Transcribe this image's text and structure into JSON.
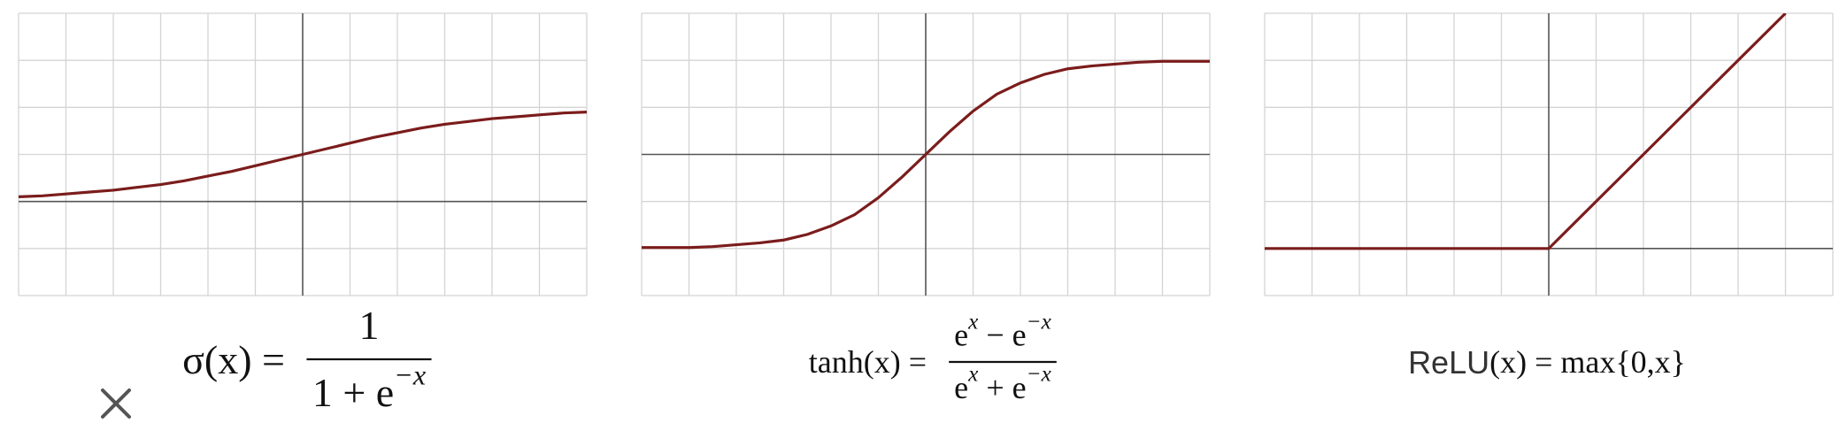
{
  "chart_data": [
    {
      "type": "line",
      "xlim": [
        -3,
        3
      ],
      "ylim": [
        -1,
        2
      ],
      "xticks": [
        -3,
        -2.5,
        -2,
        -1.5,
        -1,
        -0.5,
        0,
        0.5,
        1,
        1.5,
        2,
        2.5,
        3
      ],
      "yticks": [
        -1,
        -0.5,
        0,
        0.5,
        1,
        1.5,
        2
      ],
      "grid": true,
      "x": [
        -3,
        -2.75,
        -2.5,
        -2.25,
        -2,
        -1.75,
        -1.5,
        -1.25,
        -1,
        -0.75,
        -0.5,
        -0.25,
        0,
        0.25,
        0.5,
        0.75,
        1,
        1.25,
        1.5,
        1.75,
        2,
        2.25,
        2.5,
        2.75,
        3
      ],
      "series": [
        {
          "color": "#7b1c1c",
          "values": [
            0.05,
            0.06,
            0.08,
            0.1,
            0.12,
            0.15,
            0.18,
            0.22,
            0.27,
            0.32,
            0.38,
            0.44,
            0.5,
            0.56,
            0.62,
            0.68,
            0.73,
            0.78,
            0.82,
            0.85,
            0.88,
            0.9,
            0.92,
            0.94,
            0.95
          ]
        }
      ],
      "formula": {
        "lhs": [
          {
            "t": "σ(x) ="
          }
        ],
        "numerator": [
          {
            "t": "1"
          }
        ],
        "denominator": [
          {
            "t": "1 + e"
          },
          {
            "sup": "−x"
          }
        ]
      }
    },
    {
      "type": "line",
      "xlim": [
        -3,
        3
      ],
      "ylim": [
        -1.5,
        1.5
      ],
      "xticks": [
        -3,
        -2.5,
        -2,
        -1.5,
        -1,
        -0.5,
        0,
        0.5,
        1,
        1.5,
        2,
        2.5,
        3
      ],
      "yticks": [
        -1.5,
        -1,
        -0.5,
        0,
        0.5,
        1,
        1.5
      ],
      "grid": true,
      "x": [
        -3,
        -2.75,
        -2.5,
        -2.25,
        -2,
        -1.75,
        -1.5,
        -1.25,
        -1,
        -0.75,
        -0.5,
        -0.25,
        0,
        0.25,
        0.5,
        0.75,
        1,
        1.25,
        1.5,
        1.75,
        2,
        2.25,
        2.5,
        2.75,
        3
      ],
      "series": [
        {
          "color": "#7b1c1c",
          "values": [
            -0.99,
            -0.99,
            -0.99,
            -0.98,
            -0.96,
            -0.94,
            -0.91,
            -0.85,
            -0.76,
            -0.64,
            -0.46,
            -0.24,
            0,
            0.24,
            0.46,
            0.64,
            0.76,
            0.85,
            0.91,
            0.94,
            0.96,
            0.98,
            0.99,
            0.99,
            0.99
          ]
        }
      ],
      "formula": {
        "lhs": [
          {
            "t": "tanh(x) ="
          }
        ],
        "numerator": [
          {
            "t": "e"
          },
          {
            "sup": "x"
          },
          {
            "t": " − e"
          },
          {
            "sup": "−x"
          }
        ],
        "denominator": [
          {
            "t": "e"
          },
          {
            "sup": "x"
          },
          {
            "t": " + e"
          },
          {
            "sup": "−x"
          }
        ]
      }
    },
    {
      "type": "line",
      "xlim": [
        -3,
        3
      ],
      "ylim": [
        -0.5,
        2.5
      ],
      "xticks": [
        -3,
        -2.5,
        -2,
        -1.5,
        -1,
        -0.5,
        0,
        0.5,
        1,
        1.5,
        2,
        2.5,
        3
      ],
      "yticks": [
        -0.5,
        0,
        0.5,
        1,
        1.5,
        2,
        2.5
      ],
      "grid": true,
      "x": [
        -3,
        0,
        2.5
      ],
      "series": [
        {
          "color": "#7b1c1c",
          "values": [
            0,
            0,
            2.5
          ]
        }
      ],
      "formula": {
        "lhs": [
          {
            "sans": "ReLU"
          },
          {
            "t": "(x) = max{0,x}"
          }
        ]
      }
    }
  ]
}
